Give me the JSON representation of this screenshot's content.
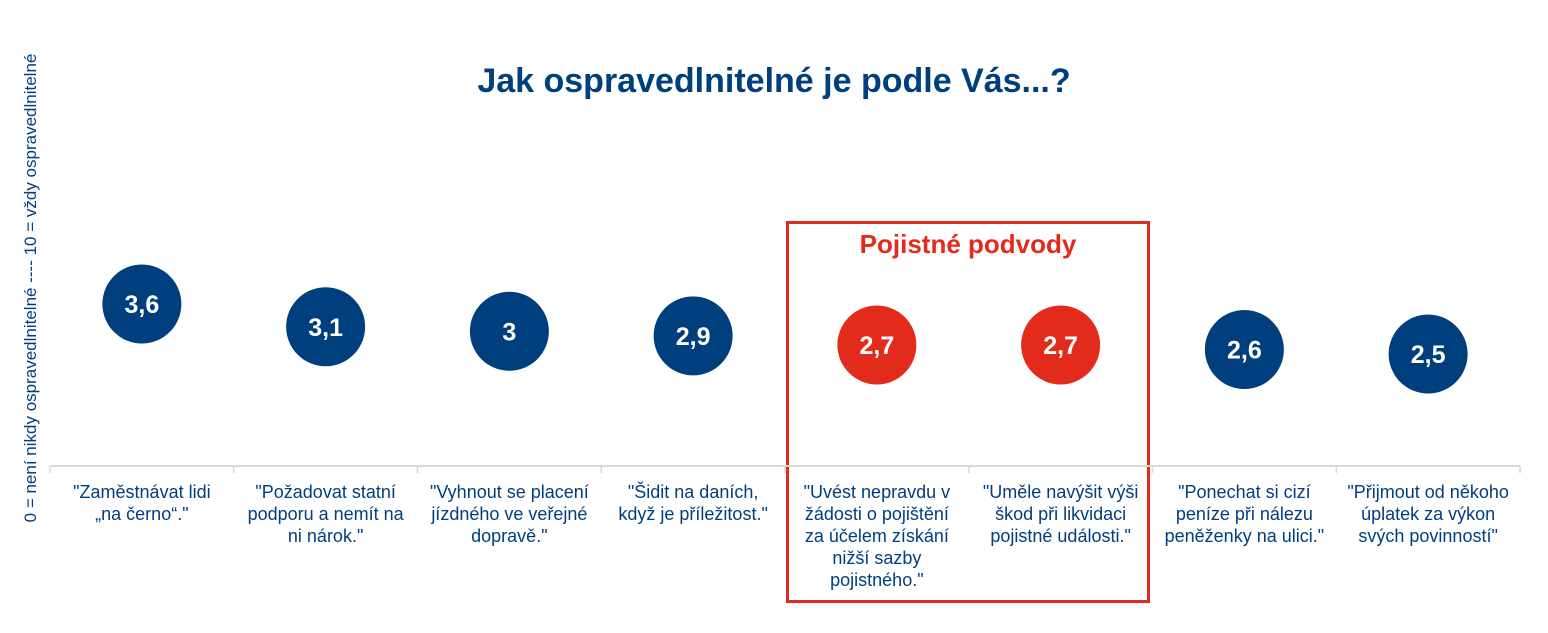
{
  "chart_data": {
    "type": "scatter",
    "title": "Jak ospravedlnitelné je podle Vás...?",
    "ylabel": "0 = není nikdy ospravedlnitelné   ----   10 = vždy ospravedlnitelné",
    "ylim": [
      0,
      10
    ],
    "grid": false,
    "categories": [
      "\"Zaměstnávat lidi\n„na černo“.\"",
      "\"Požadovat statní\npodporu a nemít na\nni nárok.\"",
      "\"Vyhnout se placení\njízdného ve veřejné\ndopravě.\"",
      "\"Šidit na daních,\nkdyž je příležitost.\"",
      "\"Uvést nepravdu v\nžádosti o pojištění\nza účelem získání\nnižší sazby\npojistného.\"",
      "\"Uměle navýšit výši\nškod při likvidaci\npojistné události.\"",
      "\"Ponechat si cizí\npeníze při nálezu\npeněženky na ulici.\"",
      "\"Přijmout od někoho\núplatek za výkon\nsvých povinností\""
    ],
    "values": [
      3.6,
      3.1,
      3,
      2.9,
      2.7,
      2.7,
      2.6,
      2.5
    ],
    "value_labels": [
      "3,6",
      "3,1",
      "3",
      "2,9",
      "2,7",
      "2,7",
      "2,6",
      "2,5"
    ],
    "highlighted": [
      false,
      false,
      false,
      false,
      true,
      true,
      false,
      false
    ],
    "highlight_group": {
      "label": "Pojistné podvody",
      "categories": [
        4,
        5
      ]
    }
  },
  "colors": {
    "primary": "#003f7d",
    "accent": "#e32b1c",
    "axis": "#d9d9d9",
    "label_text": "#ffffff"
  }
}
